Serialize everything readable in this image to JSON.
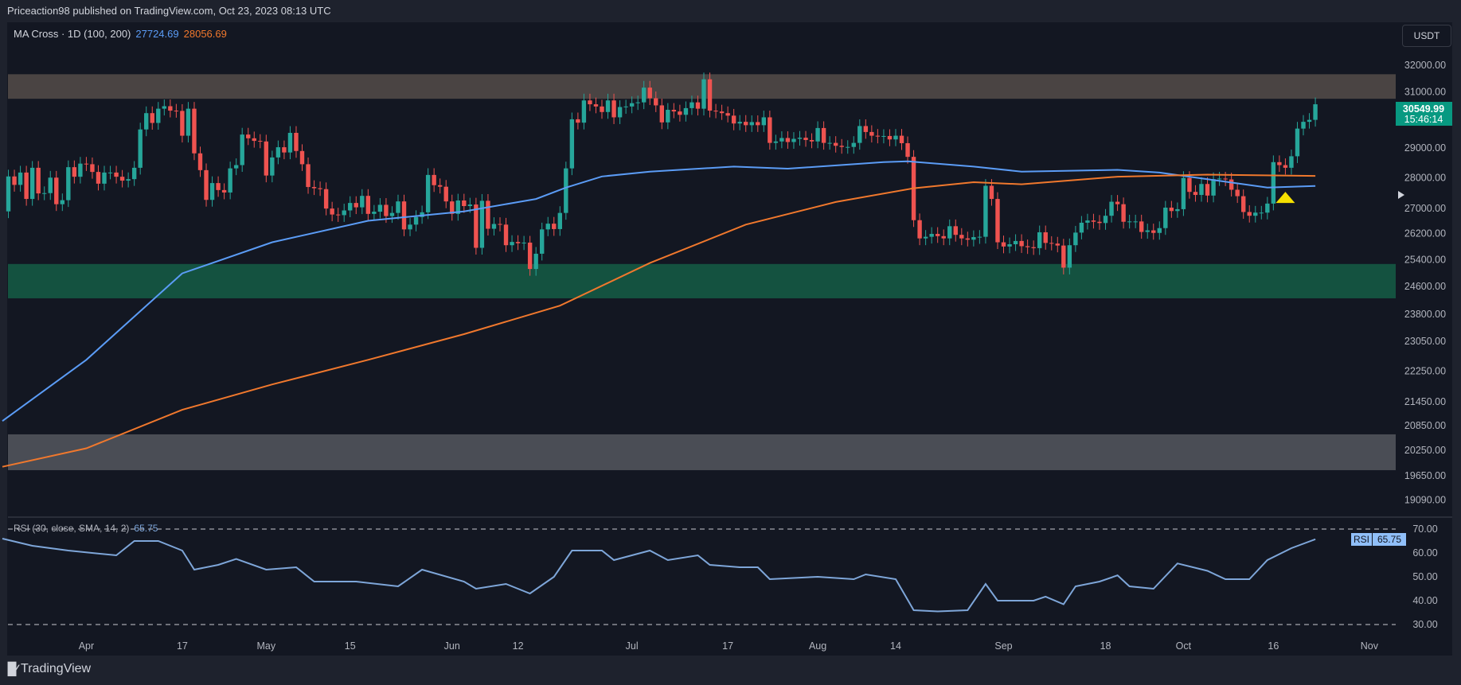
{
  "header": {
    "published": "Priceaction98 published on TradingView.com, Oct 23, 2023 08:13 UTC"
  },
  "legend": {
    "indicator": "MA Cross · 1D (100, 200)",
    "ma100_value": "27724.69",
    "ma200_value": "28056.69"
  },
  "currency_button": "USDT",
  "last_price": {
    "price": "30549.99",
    "countdown": "15:46:14"
  },
  "rsi_legend": {
    "label": "RSI (30, close, SMA, 14, 2)",
    "value": "65.75",
    "tag": "RSI"
  },
  "footer": {
    "brand": "TradingView",
    "logo": "TV"
  },
  "colors": {
    "up": "#26a69a",
    "down": "#ef5350",
    "ma100": "#5b9cf6",
    "ma200": "#f0782d",
    "rsi": "#7ea6d9",
    "zone_resistance": "#4a4443",
    "zone_support": "#145240",
    "zone_lower": "#4a4d55",
    "marker": "#f5e000"
  },
  "chart_data": [
    {
      "type": "candlestick",
      "scale": "log",
      "start_date": "2023-03-18",
      "interval": "1D",
      "closes": [
        26900,
        28040,
        27760,
        28170,
        27300,
        28330,
        27480,
        27490,
        28000,
        27130,
        27260,
        28350,
        28030,
        28470,
        28450,
        28190,
        27800,
        28170,
        28170,
        28030,
        27900,
        27950,
        28330,
        29650,
        30230,
        29880,
        30390,
        30480,
        30320,
        30310,
        29430,
        30390,
        28820,
        28250,
        27270,
        27820,
        27590,
        27510,
        28310,
        28420,
        29470,
        29340,
        29250,
        29230,
        28070,
        28680,
        29030,
        28850,
        29530,
        28900,
        28450,
        27690,
        27650,
        27620,
        26990,
        26800,
        26780,
        26930,
        27170,
        27030,
        27400,
        26820,
        26890,
        27110,
        26750,
        26850,
        27220,
        26330,
        26480,
        26720,
        26870,
        28090,
        27750,
        27700,
        27220,
        26820,
        27250,
        27070,
        27120,
        25760,
        27240,
        26350,
        26500,
        26480,
        25840,
        25940,
        25900,
        25920,
        25120,
        25580,
        26330,
        26510,
        26340,
        26850,
        28310,
        30010,
        29890,
        30690,
        30550,
        30470,
        30270,
        30690,
        30080,
        30450,
        30470,
        30590,
        30620,
        31160,
        30770,
        30510,
        29900,
        30350,
        30290,
        30170,
        30410,
        30620,
        30390,
        31470,
        30320,
        30290,
        30230,
        30140,
        29860,
        29920,
        29800,
        29910,
        29800,
        30080,
        29180,
        29230,
        29350,
        29210,
        29320,
        29360,
        29280,
        29230,
        29700,
        29180,
        29180,
        29080,
        29040,
        29040,
        29180,
        29770,
        29560,
        29430,
        29400,
        29420,
        29300,
        29430,
        29170,
        28700,
        26620,
        26050,
        26100,
        26190,
        26120,
        26050,
        26430,
        26160,
        26050,
        26010,
        26090,
        26100,
        27730,
        27300,
        25930,
        25800,
        25870,
        25970,
        25810,
        25780,
        25750,
        26240,
        25910,
        25890,
        25830,
        25160,
        25840,
        26230,
        26540,
        26610,
        26570,
        26530,
        26760,
        27210,
        27130,
        26570,
        26580,
        26580,
        26250,
        26300,
        26220,
        26370,
        27020,
        26910,
        26970,
        27990,
        27530,
        27430,
        27790,
        27410,
        27950,
        27970,
        27940,
        27600,
        27390,
        26880,
        26760,
        26860,
        26860,
        27150,
        28520,
        28420,
        28330,
        28720,
        29680,
        29920,
        29990,
        30550
      ],
      "series": [
        {
          "name": "MA 100",
          "points": [
            [
              "2023-03-18",
              20970
            ],
            [
              "2023-04-01",
              22550
            ],
            [
              "2023-04-17",
              24990
            ],
            [
              "2023-05-02",
              25930
            ],
            [
              "2023-05-18",
              26600
            ],
            [
              "2023-06-03",
              26900
            ],
            [
              "2023-06-15",
              27300
            ],
            [
              "2023-06-20",
              27670
            ],
            [
              "2023-06-26",
              28040
            ],
            [
              "2023-07-04",
              28200
            ],
            [
              "2023-07-18",
              28370
            ],
            [
              "2023-07-27",
              28300
            ],
            [
              "2023-08-12",
              28520
            ],
            [
              "2023-08-16",
              28550
            ],
            [
              "2023-08-27",
              28370
            ],
            [
              "2023-09-04",
              28200
            ],
            [
              "2023-09-20",
              28260
            ],
            [
              "2023-09-27",
              28170
            ],
            [
              "2023-10-05",
              27950
            ],
            [
              "2023-10-15",
              27670
            ],
            [
              "2023-10-23",
              27724.69
            ]
          ]
        },
        {
          "name": "MA 200",
          "points": [
            [
              "2023-03-18",
              19860
            ],
            [
              "2023-04-01",
              20300
            ],
            [
              "2023-04-17",
              21250
            ],
            [
              "2023-05-02",
              21900
            ],
            [
              "2023-05-18",
              22550
            ],
            [
              "2023-06-03",
              23250
            ],
            [
              "2023-06-19",
              24050
            ],
            [
              "2023-07-04",
              25300
            ],
            [
              "2023-07-20",
              26480
            ],
            [
              "2023-08-04",
              27200
            ],
            [
              "2023-08-17",
              27650
            ],
            [
              "2023-08-27",
              27850
            ],
            [
              "2023-09-04",
              27780
            ],
            [
              "2023-09-20",
              28030
            ],
            [
              "2023-10-05",
              28100
            ],
            [
              "2023-10-23",
              28056.69
            ]
          ]
        }
      ],
      "zones": [
        {
          "name": "resistance",
          "from": 30750,
          "to": 31660
        },
        {
          "name": "support",
          "from": 24260,
          "to": 25270
        },
        {
          "name": "lower",
          "from": 19780,
          "to": 20640
        }
      ],
      "markers": [
        {
          "type": "triangle-up",
          "date": "2023-10-18",
          "price": 27350
        }
      ],
      "y_ticks": [
        "32000.00",
        "31000.00",
        "29000.00",
        "28000.00",
        "27000.00",
        "26200.00",
        "25400.00",
        "24600.00",
        "23800.00",
        "23050.00",
        "22250.00",
        "21450.00",
        "20850.00",
        "20250.00",
        "19650.00",
        "19090.00"
      ],
      "ylim": [
        19090,
        32000
      ],
      "x_ticks": [
        [
          "2023-04-01",
          "Apr"
        ],
        [
          "2023-04-17",
          "17"
        ],
        [
          "2023-05-01",
          "May"
        ],
        [
          "2023-05-15",
          "15"
        ],
        [
          "2023-06-01",
          "Jun"
        ],
        [
          "2023-06-12",
          "12"
        ],
        [
          "2023-07-01",
          "Jul"
        ],
        [
          "2023-07-17",
          "17"
        ],
        [
          "2023-08-01",
          "Aug"
        ],
        [
          "2023-08-14",
          "14"
        ],
        [
          "2023-09-01",
          "Sep"
        ],
        [
          "2023-09-18",
          "18"
        ],
        [
          "2023-10-01",
          "Oct"
        ],
        [
          "2023-10-16",
          "16"
        ],
        [
          "2023-11-01",
          "Nov"
        ]
      ]
    },
    {
      "type": "line",
      "name": "RSI",
      "ylim": [
        30,
        70
      ],
      "levels": [
        70,
        30
      ],
      "y_ticks": [
        "70.00",
        "60.00",
        "50.00",
        "40.00",
        "30.00"
      ],
      "points": [
        [
          "2023-03-18",
          66
        ],
        [
          "2023-03-23",
          63
        ],
        [
          "2023-03-29",
          61
        ],
        [
          "2023-04-06",
          59
        ],
        [
          "2023-04-09",
          65
        ],
        [
          "2023-04-13",
          65
        ],
        [
          "2023-04-17",
          61
        ],
        [
          "2023-04-19",
          53
        ],
        [
          "2023-04-23",
          55
        ],
        [
          "2023-04-26",
          57.5
        ],
        [
          "2023-05-01",
          53
        ],
        [
          "2023-05-06",
          54
        ],
        [
          "2023-05-09",
          48
        ],
        [
          "2023-05-16",
          48
        ],
        [
          "2023-05-23",
          46
        ],
        [
          "2023-05-27",
          53
        ],
        [
          "2023-06-03",
          48
        ],
        [
          "2023-06-05",
          45
        ],
        [
          "2023-06-10",
          47
        ],
        [
          "2023-06-14",
          43
        ],
        [
          "2023-06-18",
          50
        ],
        [
          "2023-06-21",
          61
        ],
        [
          "2023-06-26",
          61
        ],
        [
          "2023-06-28",
          57
        ],
        [
          "2023-07-04",
          61
        ],
        [
          "2023-07-07",
          57
        ],
        [
          "2023-07-12",
          59
        ],
        [
          "2023-07-14",
          55
        ],
        [
          "2023-07-19",
          54
        ],
        [
          "2023-07-22",
          54
        ],
        [
          "2023-07-24",
          49
        ],
        [
          "2023-08-01",
          50
        ],
        [
          "2023-08-07",
          49
        ],
        [
          "2023-08-09",
          51
        ],
        [
          "2023-08-14",
          49
        ],
        [
          "2023-08-17",
          36
        ],
        [
          "2023-08-21",
          35.5
        ],
        [
          "2023-08-26",
          36
        ],
        [
          "2023-08-29",
          47
        ],
        [
          "2023-08-31",
          40
        ],
        [
          "2023-09-06",
          40
        ],
        [
          "2023-09-08",
          41.7
        ],
        [
          "2023-09-11",
          38.5
        ],
        [
          "2023-09-13",
          46
        ],
        [
          "2023-09-17",
          48
        ],
        [
          "2023-09-20",
          50.6
        ],
        [
          "2023-09-22",
          46
        ],
        [
          "2023-09-26",
          45
        ],
        [
          "2023-09-30",
          55.6
        ],
        [
          "2023-10-05",
          52.5
        ],
        [
          "2023-10-08",
          49
        ],
        [
          "2023-10-12",
          49
        ],
        [
          "2023-10-15",
          57
        ],
        [
          "2023-10-19",
          62
        ],
        [
          "2023-10-23",
          65.75
        ]
      ]
    }
  ]
}
